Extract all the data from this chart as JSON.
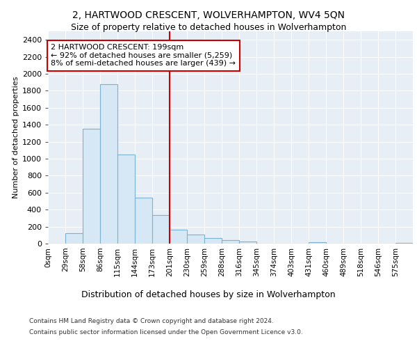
{
  "title": "2, HARTWOOD CRESCENT, WOLVERHAMPTON, WV4 5QN",
  "subtitle": "Size of property relative to detached houses in Wolverhampton",
  "xlabel": "Distribution of detached houses by size in Wolverhampton",
  "ylabel": "Number of detached properties",
  "footer_line1": "Contains HM Land Registry data © Crown copyright and database right 2024.",
  "footer_line2": "Contains public sector information licensed under the Open Government Licence v3.0.",
  "bin_labels": [
    "0sqm",
    "29sqm",
    "58sqm",
    "86sqm",
    "115sqm",
    "144sqm",
    "173sqm",
    "201sqm",
    "230sqm",
    "259sqm",
    "288sqm",
    "316sqm",
    "345sqm",
    "374sqm",
    "403sqm",
    "431sqm",
    "460sqm",
    "489sqm",
    "518sqm",
    "546sqm",
    "575sqm"
  ],
  "bar_heights": [
    0,
    125,
    1350,
    1880,
    1050,
    540,
    340,
    160,
    105,
    65,
    40,
    25,
    0,
    0,
    0,
    15,
    0,
    0,
    0,
    0,
    10
  ],
  "bar_color": "#d6e8f5",
  "bar_edge_color": "#7ab3d4",
  "vline_x_index": 7,
  "vline_color": "#cc0000",
  "annotation_text": "2 HARTWOOD CRESCENT: 199sqm\n← 92% of detached houses are smaller (5,259)\n8% of semi-detached houses are larger (439) →",
  "annotation_box_color": "#cc0000",
  "ylim": [
    0,
    2500
  ],
  "yticks": [
    0,
    200,
    400,
    600,
    800,
    1000,
    1200,
    1400,
    1600,
    1800,
    2000,
    2200,
    2400
  ],
  "bin_width": 29,
  "property_size": 199,
  "background_color": "#e8eef5",
  "plot_bg_color": "#e8eef5",
  "title_fontsize": 10,
  "subtitle_fontsize": 9,
  "ylabel_fontsize": 8,
  "xlabel_fontsize": 9,
  "tick_fontsize": 8,
  "xtick_fontsize": 7.5,
  "footer_fontsize": 6.5,
  "annotation_fontsize": 8
}
